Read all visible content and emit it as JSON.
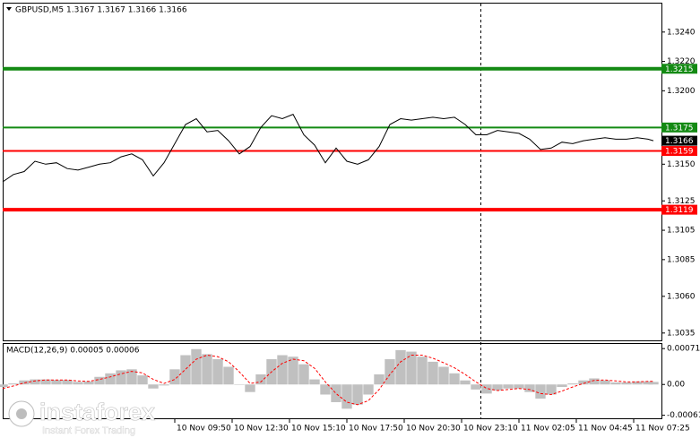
{
  "chart_data": [
    {
      "type": "line",
      "title": "GBPUSD,M5  1.3167 1.3167 1.3166 1.3166",
      "xlim": [
        0,
        366
      ],
      "ylim": [
        1.303,
        1.326
      ],
      "yticks": [
        {
          "value": 1.324,
          "label": "1.3240"
        },
        {
          "value": 1.322,
          "label": "1.3220"
        },
        {
          "value": 1.32,
          "label": "1.3200"
        },
        {
          "value": 1.315,
          "label": "1.3150"
        },
        1.3125,
        1.3105,
        1.3085,
        {
          "value": 1.306,
          "label": "1.3060"
        },
        1.3035
      ],
      "xticks": [
        {
          "value": 96,
          "label": "10 Nov 09:50"
        },
        {
          "value": 128,
          "label": "10 Nov 12:30"
        },
        {
          "value": 160,
          "label": "10 Nov 15:10"
        },
        {
          "value": 192,
          "label": "10 Nov 17:50"
        },
        {
          "value": 224,
          "label": "10 Nov 20:30"
        },
        {
          "value": 256,
          "label": "10 Nov 23:10"
        },
        {
          "value": 288,
          "label": "11 Nov 02:05"
        },
        {
          "value": 320,
          "label": "11 Nov 04:45"
        },
        {
          "value": 352,
          "label": "11 Nov 07:25"
        }
      ],
      "levels": [
        {
          "value": 1.3215,
          "color": "#138a13",
          "style": "thick"
        },
        {
          "value": 1.3175,
          "color": "#138a13",
          "style": "thin"
        },
        {
          "value": 1.3166,
          "color": "#000000",
          "style": "label"
        },
        {
          "value": 1.3159,
          "color": "#ff0000",
          "style": "thin"
        },
        {
          "value": 1.3119,
          "color": "#ff0000",
          "style": "thick"
        }
      ],
      "series": [
        {
          "color": "#000000",
          "x": [
            0,
            6,
            12,
            18,
            24,
            30,
            36,
            42,
            48,
            54,
            60,
            66,
            72,
            78,
            84,
            90,
            96,
            102,
            108,
            114,
            120,
            126,
            132,
            138,
            144,
            150,
            156,
            162,
            168,
            174,
            180,
            186,
            192,
            198,
            204,
            210,
            216,
            222,
            228,
            234,
            240,
            246,
            252,
            258,
            264,
            270,
            276,
            282,
            288,
            294,
            300,
            306,
            312,
            318,
            324,
            330,
            336,
            342,
            348,
            354,
            360,
            363
          ],
          "values": [
            1.3138,
            1.3143,
            1.3145,
            1.3152,
            1.315,
            1.3151,
            1.3147,
            1.3146,
            1.3148,
            1.315,
            1.3151,
            1.3155,
            1.3157,
            1.3153,
            1.3142,
            1.3151,
            1.3164,
            1.3177,
            1.3181,
            1.3172,
            1.3173,
            1.3166,
            1.3157,
            1.3162,
            1.3175,
            1.3183,
            1.3181,
            1.3184,
            1.317,
            1.3163,
            1.3151,
            1.3161,
            1.3152,
            1.315,
            1.3153,
            1.3162,
            1.3177,
            1.3181,
            1.318,
            1.3181,
            1.3182,
            1.3181,
            1.3182,
            1.3177,
            1.317,
            1.317,
            1.3173,
            1.3172,
            1.3171,
            1.3167,
            1.316,
            1.3161,
            1.3165,
            1.3164,
            1.3166,
            1.3167,
            1.3168,
            1.3167,
            1.3167,
            1.3168,
            1.3167,
            1.3166
          ]
        }
      ]
    },
    {
      "type": "macd",
      "title": "MACD(12,26,9) 0.00005 0.00006",
      "xlim": [
        0,
        366
      ],
      "ylim": [
        -0.00067,
        0.00082
      ],
      "yticks": [
        0.00071,
        {
          "value": 0,
          "label": "0.00"
        },
        -0.00061
      ],
      "x": [
        0,
        6,
        12,
        18,
        24,
        30,
        36,
        42,
        48,
        54,
        60,
        66,
        72,
        78,
        84,
        90,
        96,
        102,
        108,
        114,
        120,
        126,
        132,
        138,
        144,
        150,
        156,
        162,
        168,
        174,
        180,
        186,
        192,
        198,
        204,
        210,
        216,
        222,
        228,
        234,
        240,
        246,
        252,
        258,
        264,
        270,
        276,
        282,
        288,
        294,
        300,
        306,
        312,
        318,
        324,
        330,
        336,
        342,
        348,
        354,
        360,
        363
      ],
      "series": [
        {
          "color": "#c0c0c0",
          "values": [
            -5e-05,
            2e-05,
            8e-05,
            0.0001,
            0.0001,
            9e-05,
            9e-05,
            5e-05,
            6e-05,
            0.00015,
            0.00022,
            0.00028,
            0.0003,
            0.00018,
            -8e-05,
            -2e-05,
            0.0003,
            0.00058,
            0.0007,
            0.0006,
            0.0005,
            0.00035,
            0,
            -0.00015,
            0.0002,
            0.0005,
            0.00058,
            0.00055,
            0.0004,
            0.0001,
            -0.0002,
            -0.00035,
            -0.00048,
            -0.0004,
            -0.0002,
            0.0002,
            0.0005,
            0.00068,
            0.00065,
            0.00055,
            0.00045,
            0.00035,
            0.00022,
            8e-05,
            -0.0001,
            -0.00018,
            -0.00012,
            -8e-05,
            -8e-05,
            -0.00015,
            -0.00028,
            -0.0002,
            -5e-05,
            2e-05,
            8e-05,
            0.00012,
            8e-05,
            4e-05,
            4e-05,
            6e-05,
            6e-05,
            5e-05
          ]
        },
        {
          "color": "#ff0000",
          "values": [
            -8e-05,
            -3e-05,
            3e-05,
            7e-05,
            9e-05,
            9e-05,
            9e-05,
            7e-05,
            6e-05,
            0.0001,
            0.00015,
            0.00021,
            0.00026,
            0.00023,
            0.0001,
            2e-05,
            0.0001,
            0.0003,
            0.0005,
            0.00058,
            0.00055,
            0.00045,
            0.00025,
            2e-05,
            5e-05,
            0.00025,
            0.00042,
            0.0005,
            0.00047,
            0.00032,
            5e-05,
            -0.00018,
            -0.00035,
            -0.0004,
            -0.00032,
            -0.0001,
            0.0002,
            0.00045,
            0.00058,
            0.00058,
            0.00052,
            0.00043,
            0.00033,
            0.0002,
            5e-05,
            -8e-05,
            -0.00012,
            -0.0001,
            -8e-05,
            -0.0001,
            -0.00018,
            -0.0002,
            -0.00013,
            -5e-05,
            2e-05,
            8e-05,
            9e-05,
            7e-05,
            5e-05,
            5e-05,
            6e-05,
            6e-05
          ]
        }
      ]
    }
  ],
  "watermark": {
    "brand": "instaforex",
    "tagline": "Instant Forex Trading"
  }
}
